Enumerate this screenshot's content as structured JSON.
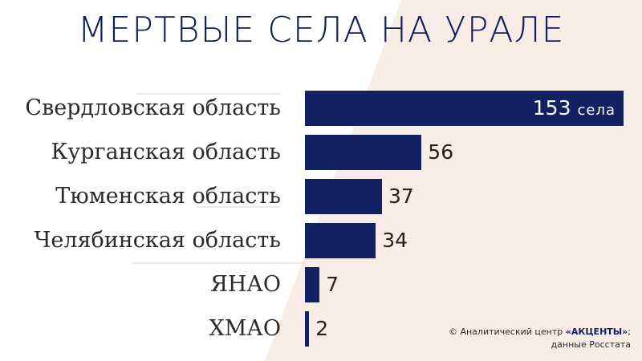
{
  "title": "МЕРТВЫЕ СЕЛА НА УРАЛЕ",
  "colors": {
    "bar": "#132163",
    "title": "#0f1f5c",
    "background_accent": "#f7ede6"
  },
  "chart_data": {
    "type": "bar",
    "orientation": "horizontal",
    "title": "МЕРТВЫЕ СЕЛА НА УРАЛЕ",
    "categories": [
      "Свердловская область",
      "Курганская область",
      "Тюменская область",
      "Челябинская область",
      "ЯНАО",
      "ХМАО"
    ],
    "values": [
      153,
      56,
      37,
      34,
      7,
      2
    ],
    "data_labels": [
      "153",
      "56",
      "37",
      "34",
      "7",
      "2"
    ],
    "first_label_unit": "села",
    "xlim": [
      0,
      153
    ],
    "grid": false
  },
  "credit": {
    "line1_prefix": "© Аналитический центр ",
    "brand": "«АКЦЕНТЫ»",
    "line1_suffix": ";",
    "line2": "данные Росстата"
  }
}
